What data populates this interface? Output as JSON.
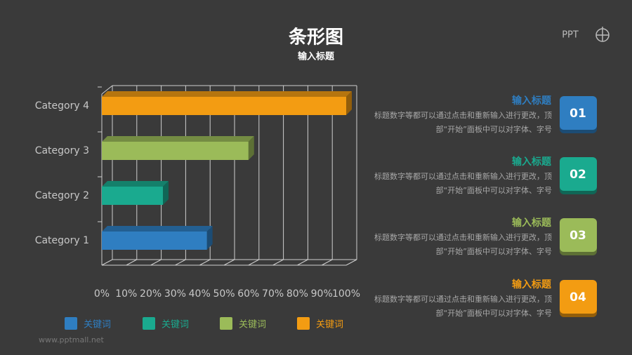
{
  "chart_data": {
    "type": "bar",
    "orientation": "horizontal",
    "title": "条形图",
    "subtitle": "输入标题",
    "categories": [
      "Category 1",
      "Category 2",
      "Category 3",
      "Category 4"
    ],
    "values": [
      43,
      25,
      60,
      100
    ],
    "colors": [
      "#2f7ec1",
      "#1aaa8f",
      "#9bbb59",
      "#f39c12"
    ],
    "legend_labels": [
      "关键词",
      "关键词",
      "关键词",
      "关键词"
    ],
    "xlim": [
      0,
      100
    ],
    "xticks": [
      {
        "value": 0,
        "label": "0%"
      },
      {
        "value": 10,
        "label": "10%"
      },
      {
        "value": 20,
        "label": "20%"
      },
      {
        "value": 30,
        "label": "30%"
      },
      {
        "value": 40,
        "label": "40%"
      },
      {
        "value": 50,
        "label": "50%"
      },
      {
        "value": 60,
        "label": "60%"
      },
      {
        "value": 70,
        "label": "70%"
      },
      {
        "value": 80,
        "label": "80%"
      },
      {
        "value": 90,
        "label": "90%"
      },
      {
        "value": 100,
        "label": "100%"
      }
    ],
    "grid": true
  },
  "items": [
    {
      "title": "输入标题",
      "text": "标题数字等都可以通过点击和重新输入进行更改，顶部“开始”面板中可以对字体、字号",
      "number": "01"
    },
    {
      "title": "输入标题",
      "text": "标题数字等都可以通过点击和重新输入进行更改，顶部“开始”面板中可以对字体、字号",
      "number": "02"
    },
    {
      "title": "输入标题",
      "text": "标题数字等都可以通过点击和重新输入进行更改，顶部“开始”面板中可以对字体、字号",
      "number": "03"
    },
    {
      "title": "输入标题",
      "text": "标题数字等都可以通过点击和重新输入进行更改，顶部“开始”面板中可以对字体、字号",
      "number": "04"
    }
  ],
  "logo": "PPT",
  "footer": "www.pptmall.net"
}
